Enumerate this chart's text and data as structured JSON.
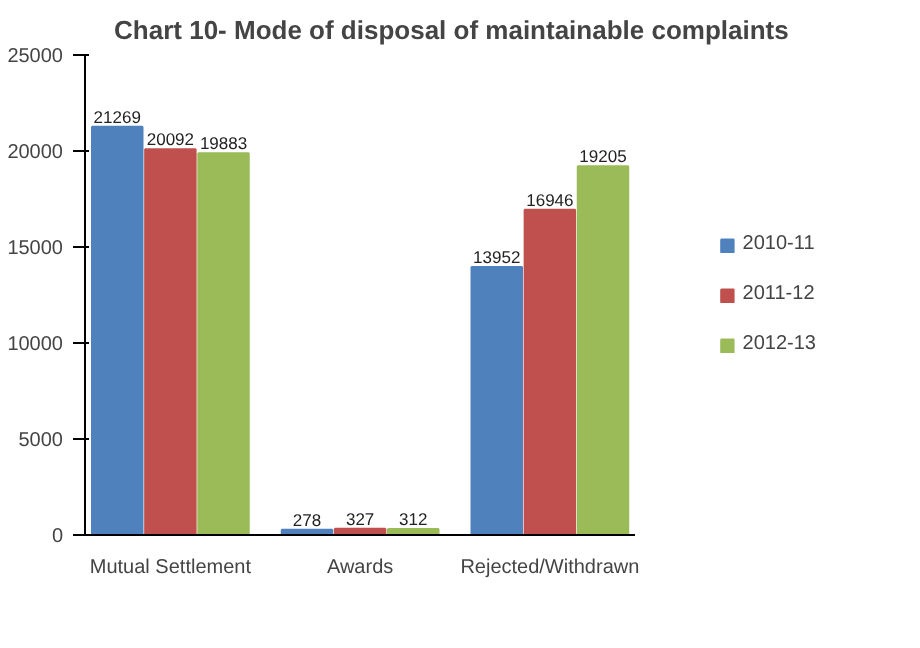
{
  "chart_data": {
    "type": "bar",
    "title": "Chart  10- Mode of disposal of maintainable complaints",
    "categories": [
      "Mutual Settlement",
      "Awards",
      "Rejected/Withdrawn"
    ],
    "series": [
      {
        "name": "2010-11",
        "color": "#4f81bd",
        "values": [
          21269,
          278,
          13952
        ]
      },
      {
        "name": "2011-12",
        "color": "#c0504d",
        "values": [
          20092,
          327,
          16946
        ]
      },
      {
        "name": "2012-13",
        "color": "#9bbb59",
        "values": [
          19883,
          312,
          19205
        ]
      }
    ],
    "ylim": [
      0,
      25000
    ],
    "yticks": [
      0,
      5000,
      10000,
      15000,
      20000,
      25000
    ],
    "data_labels": true,
    "legend": "right",
    "grid": false
  }
}
